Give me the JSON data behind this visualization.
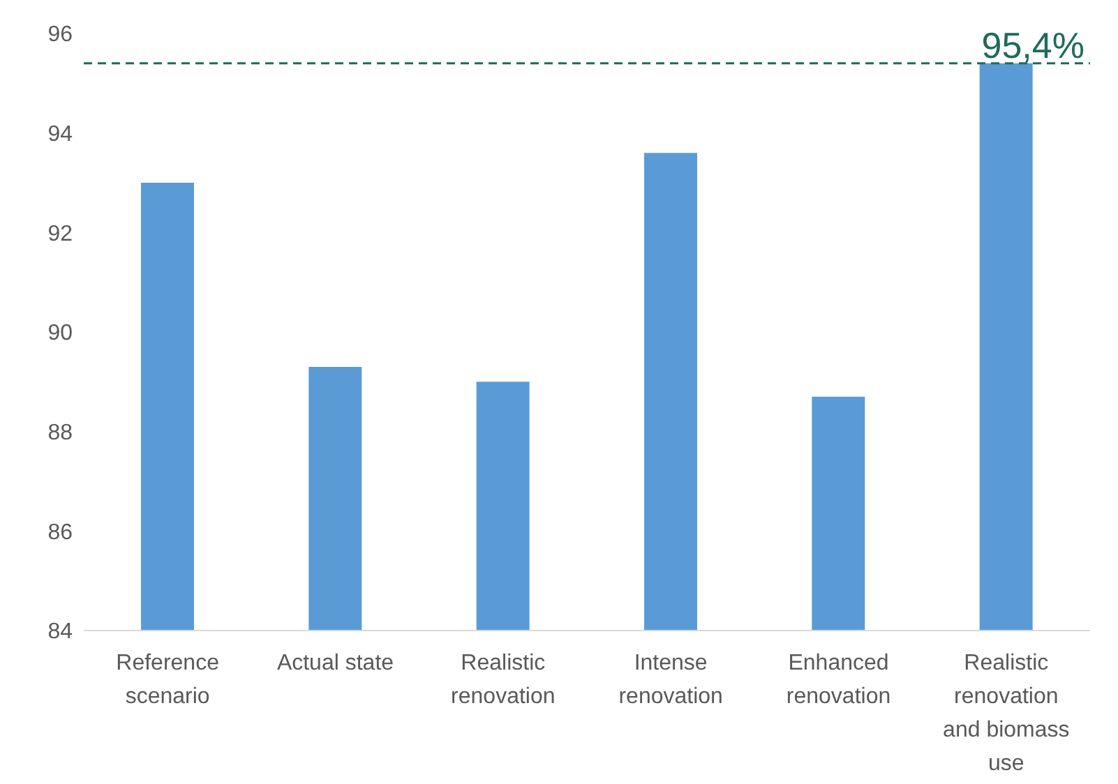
{
  "chart_data": {
    "type": "bar",
    "categories": [
      "Reference scenario",
      "Actual state",
      "Realistic renovation",
      "Intense renovation",
      "Enhanced renovation",
      "Realistic renovation and biomass use"
    ],
    "values": [
      93.0,
      89.3,
      89.0,
      93.6,
      88.7,
      95.4
    ],
    "color": "#5b9bd5",
    "ylim": [
      84,
      96
    ],
    "yticks": [
      84,
      86,
      88,
      90,
      92,
      94,
      96
    ],
    "ref_lines": [
      {
        "axis": "y",
        "value": 95.4,
        "label": "95,4%",
        "color": "#1f6b5a",
        "line_style": "dashed"
      }
    ]
  }
}
